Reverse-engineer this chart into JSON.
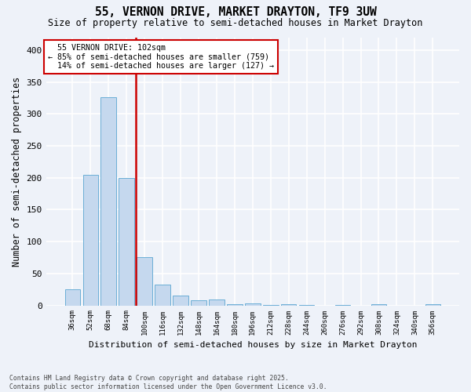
{
  "title": "55, VERNON DRIVE, MARKET DRAYTON, TF9 3UW",
  "subtitle": "Size of property relative to semi-detached houses in Market Drayton",
  "xlabel": "Distribution of semi-detached houses by size in Market Drayton",
  "ylabel": "Number of semi-detached properties",
  "categories": [
    "36sqm",
    "52sqm",
    "68sqm",
    "84sqm",
    "100sqm",
    "116sqm",
    "132sqm",
    "148sqm",
    "164sqm",
    "180sqm",
    "196sqm",
    "212sqm",
    "228sqm",
    "244sqm",
    "260sqm",
    "276sqm",
    "292sqm",
    "308sqm",
    "324sqm",
    "340sqm",
    "356sqm"
  ],
  "values": [
    25,
    204,
    326,
    200,
    75,
    33,
    15,
    8,
    9,
    2,
    3,
    1,
    2,
    1,
    0,
    1,
    0,
    2,
    0,
    0,
    2
  ],
  "bar_color": "#c5d8ee",
  "bar_edge_color": "#6baed6",
  "vline_index": 4,
  "vline_color": "#cc0000",
  "property_label": "55 VERNON DRIVE: 102sqm",
  "pct_smaller": 85,
  "n_smaller": 759,
  "pct_larger": 14,
  "n_larger": 127,
  "ylim": [
    0,
    420
  ],
  "yticks": [
    0,
    50,
    100,
    150,
    200,
    250,
    300,
    350,
    400
  ],
  "background_color": "#eef2f9",
  "grid_color": "#ffffff",
  "footer_line1": "Contains HM Land Registry data © Crown copyright and database right 2025.",
  "footer_line2": "Contains public sector information licensed under the Open Government Licence v3.0."
}
